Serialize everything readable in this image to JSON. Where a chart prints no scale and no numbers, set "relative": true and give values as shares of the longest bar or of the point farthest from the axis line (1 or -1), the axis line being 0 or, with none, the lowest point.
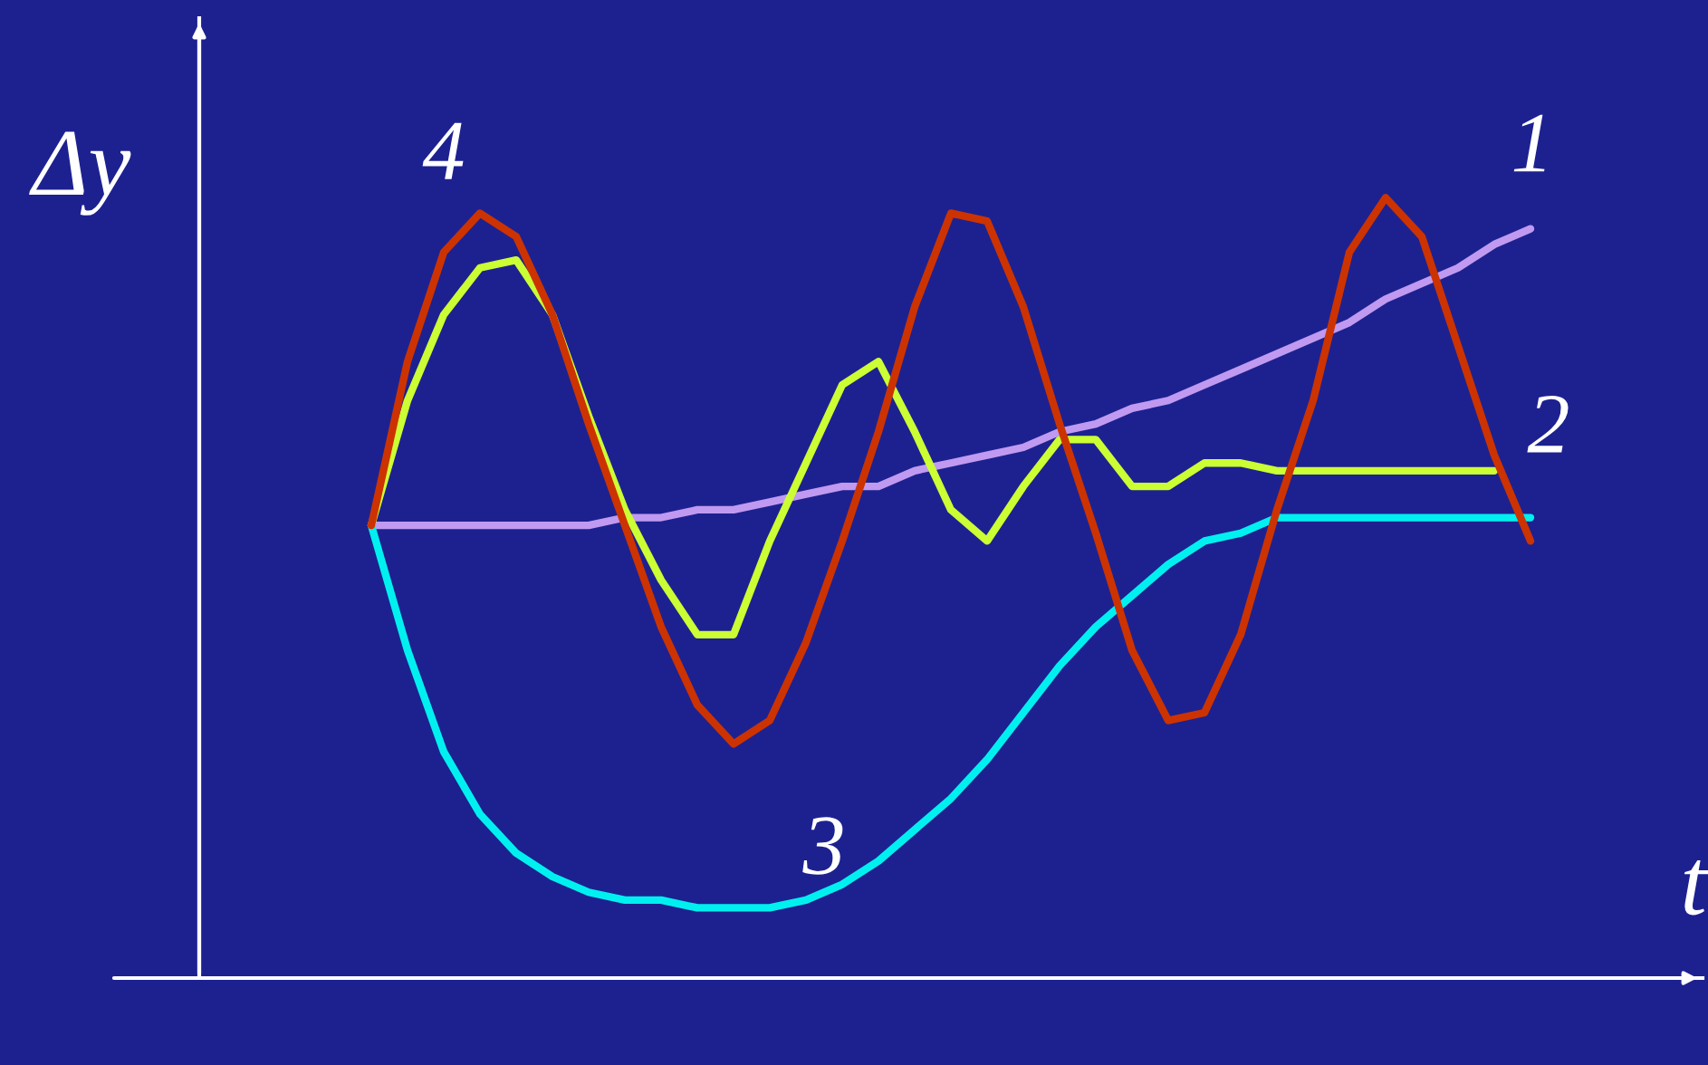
{
  "chart_data": {
    "type": "line",
    "relative": true,
    "xlabel": "t",
    "ylabel": "Δy",
    "grid": false,
    "legend": false,
    "marker": "none",
    "line_style": "solid",
    "categories": [
      null,
      null,
      null,
      null,
      null,
      null,
      null,
      null,
      null,
      null,
      null,
      null,
      null,
      null,
      null,
      null,
      null,
      null,
      null,
      null,
      null,
      null,
      null,
      null,
      null,
      null,
      null,
      null,
      null,
      null,
      null,
      null,
      null
    ],
    "series": [
      {
        "name": "1",
        "color": "#c09af0",
        "values": [
          0.58,
          0.58,
          0.58,
          0.58,
          0.58,
          0.58,
          0.58,
          0.59,
          0.59,
          0.6,
          0.6,
          0.61,
          0.62,
          0.63,
          0.63,
          0.65,
          0.66,
          0.67,
          0.68,
          0.7,
          0.71,
          0.73,
          0.74,
          0.76,
          0.78,
          0.8,
          0.82,
          0.84,
          0.87,
          0.89,
          0.91,
          0.94,
          0.96
        ]
      },
      {
        "name": "2",
        "color": "#ccff33",
        "values": [
          0.58,
          0.74,
          0.85,
          0.91,
          0.92,
          0.85,
          0.72,
          0.6,
          0.51,
          0.44,
          0.44,
          0.56,
          0.66,
          0.76,
          0.79,
          0.7,
          0.6,
          0.56,
          0.63,
          0.69,
          0.69,
          0.63,
          0.63,
          0.66,
          0.66,
          0.65,
          0.65,
          0.65,
          0.65,
          0.65,
          0.65,
          0.65,
          null
        ]
      },
      {
        "name": "3",
        "color": "#00f0f0",
        "values": [
          0.58,
          0.42,
          0.29,
          0.21,
          0.16,
          0.13,
          0.11,
          0.1,
          0.1,
          0.09,
          0.09,
          0.09,
          0.1,
          0.12,
          0.15,
          0.19,
          0.23,
          0.28,
          0.34,
          0.4,
          0.45,
          0.49,
          0.53,
          0.56,
          0.57,
          0.59,
          0.59,
          0.59,
          0.59,
          0.59,
          0.59,
          0.59,
          0.59
        ]
      },
      {
        "name": "4",
        "color": "#cc3300",
        "values": [
          0.58,
          0.79,
          0.93,
          0.98,
          0.95,
          0.85,
          0.71,
          0.58,
          0.45,
          0.35,
          0.3,
          0.33,
          0.43,
          0.56,
          0.7,
          0.86,
          0.98,
          0.97,
          0.86,
          0.71,
          0.57,
          0.42,
          0.33,
          0.34,
          0.44,
          0.6,
          0.74,
          0.93,
          1.0,
          0.95,
          0.81,
          0.67,
          0.56
        ]
      }
    ]
  }
}
